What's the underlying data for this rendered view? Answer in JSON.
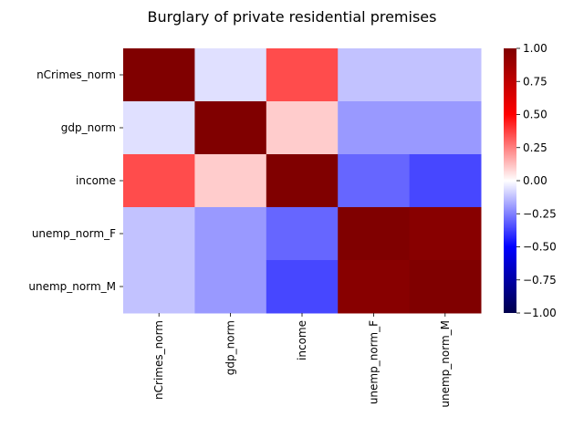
{
  "chart_data": {
    "type": "heatmap",
    "title": "Burglary of private residential premises",
    "xlabel": "",
    "ylabel": "",
    "x_categories": [
      "nCrimes_norm",
      "gdp_norm",
      "income",
      "unemp_norm_F",
      "unemp_norm_M"
    ],
    "y_categories": [
      "nCrimes_norm",
      "gdp_norm",
      "income",
      "unemp_norm_F",
      "unemp_norm_M"
    ],
    "values": [
      [
        1.0,
        -0.06,
        0.35,
        -0.12,
        -0.12
      ],
      [
        -0.06,
        1.0,
        0.1,
        -0.2,
        -0.2
      ],
      [
        0.35,
        0.1,
        1.0,
        -0.3,
        -0.36
      ],
      [
        -0.12,
        -0.2,
        -0.3,
        1.0,
        0.97
      ],
      [
        -0.12,
        -0.2,
        -0.36,
        0.97,
        1.0
      ]
    ],
    "colormap": "seismic",
    "vmin": -1.0,
    "vmax": 1.0,
    "colorbar": {
      "ticks": [
        -1.0,
        -0.75,
        -0.5,
        -0.25,
        0.0,
        0.25,
        0.5,
        0.75,
        1.0
      ],
      "tick_labels": [
        "−1.00",
        "−0.75",
        "−0.50",
        "−0.25",
        "0.00",
        "0.25",
        "0.50",
        "0.75",
        "1.00"
      ]
    },
    "grid": false,
    "legend": "colorbar-right"
  }
}
